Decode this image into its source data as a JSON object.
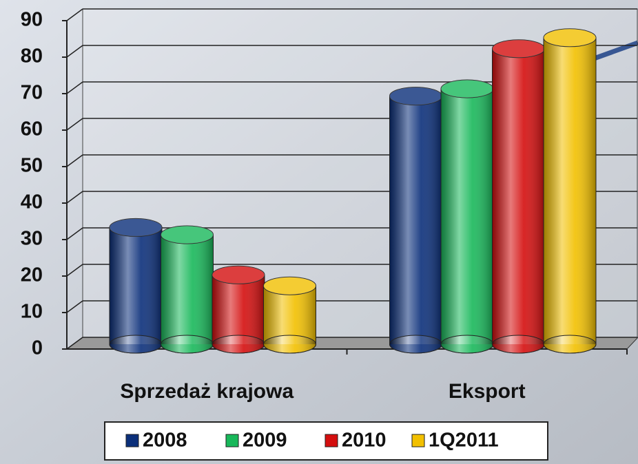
{
  "chart_data": {
    "type": "bar",
    "categories": [
      "Sprzedaż krajowa",
      "Eksport"
    ],
    "series": [
      {
        "name": "2008",
        "color": "#0b2f7a",
        "values": [
          32,
          68
        ]
      },
      {
        "name": "2009",
        "color": "#18b85a",
        "values": [
          30,
          70
        ]
      },
      {
        "name": "2010",
        "color": "#d40e0e",
        "values": [
          19,
          81
        ]
      },
      {
        "name": "1Q2011",
        "color": "#f2c000",
        "values": [
          16,
          84
        ]
      }
    ],
    "ylim": [
      0,
      90
    ],
    "yticks": [
      0,
      10,
      20,
      30,
      40,
      50,
      60,
      70,
      80,
      90
    ],
    "grid": true
  }
}
